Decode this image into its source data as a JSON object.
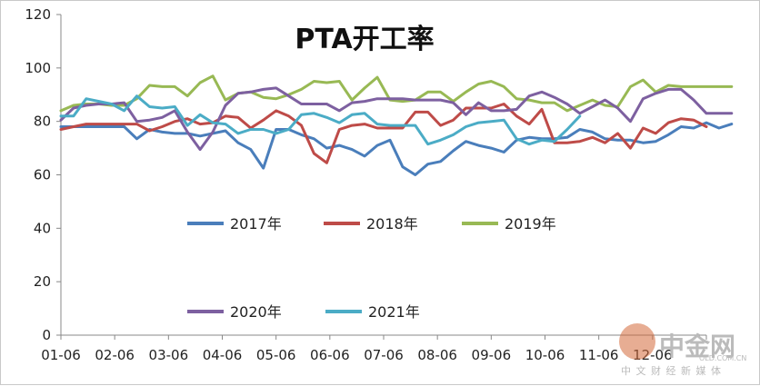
{
  "chart_data": {
    "type": "line",
    "title": "PTA开工率",
    "xlabel": "",
    "ylabel": "",
    "ylim": [
      0,
      120
    ],
    "yticks": [
      0,
      20,
      40,
      60,
      80,
      100,
      120
    ],
    "xticks": [
      "01-06",
      "02-06",
      "03-06",
      "04-06",
      "05-06",
      "06-06",
      "07-06",
      "08-06",
      "09-06",
      "10-06",
      "11-06",
      "12-06"
    ],
    "x_points_per_year": 52,
    "grid": false,
    "legend_placement": "middle",
    "series": [
      {
        "name": "2017年",
        "color": "#4a7ebb",
        "values": [
          78,
          78,
          78,
          78,
          78,
          78,
          73.5,
          77,
          76,
          75.5,
          75.5,
          74.5,
          75.5,
          76.5,
          72,
          69.5,
          62.5,
          77,
          77,
          75,
          73.5,
          70,
          71,
          69.5,
          67,
          71,
          73,
          63,
          60,
          64,
          65,
          69,
          72.5,
          71,
          70,
          68.5,
          73,
          74,
          73.5,
          73.5,
          74,
          77,
          76,
          73.5,
          73,
          73,
          72,
          72.5,
          75,
          78,
          77.5,
          79.5,
          77.5,
          79
        ]
      },
      {
        "name": "2018年",
        "color": "#be4b48",
        "values": [
          77,
          78,
          79,
          79,
          79,
          79,
          79,
          76.5,
          78,
          80,
          81,
          79,
          79.5,
          82,
          81.5,
          77.5,
          80.5,
          84,
          82,
          78.5,
          68,
          64.5,
          77,
          78.5,
          79,
          77.5,
          77.5,
          77.5,
          83.5,
          83.5,
          78.5,
          80.5,
          85,
          85,
          85,
          86.5,
          82,
          79,
          84.5,
          72,
          72,
          72.5,
          74,
          72,
          75.5,
          70,
          77.5,
          75.5,
          79.5,
          81,
          80.5,
          78
        ]
      },
      {
        "name": "2019年",
        "color": "#98b954",
        "values": [
          84,
          86,
          86.5,
          86.5,
          86,
          86,
          88.5,
          93.5,
          93,
          93,
          89.5,
          94.5,
          97,
          88,
          90.5,
          91,
          89,
          88.5,
          90,
          92,
          95,
          94.5,
          95,
          88,
          92.5,
          96.5,
          88,
          87.5,
          88,
          91,
          91,
          87.5,
          91,
          94,
          95,
          93,
          88.5,
          88,
          87,
          87,
          84,
          86,
          88,
          86,
          85.5,
          93,
          95.5,
          91,
          93.5,
          93,
          93,
          93,
          93,
          93
        ]
      },
      {
        "name": "2020年",
        "color": "#7d60a0",
        "values": [
          80.5,
          85,
          86,
          86.5,
          86.5,
          87,
          80,
          80.5,
          81.5,
          84,
          76,
          69.5,
          76,
          86,
          90.5,
          91,
          92,
          92.5,
          89.5,
          86.5,
          86.5,
          86.5,
          84,
          87,
          87.5,
          88.5,
          88.5,
          88.5,
          88,
          88,
          88,
          87,
          82.5,
          87,
          84,
          84,
          84.5,
          89.5,
          91,
          89,
          86.5,
          83,
          85.5,
          88,
          85,
          80,
          88.5,
          90.5,
          92,
          92,
          88,
          83,
          83,
          83
        ]
      },
      {
        "name": "2021年",
        "color": "#4bacc6",
        "values": [
          82,
          82,
          88.5,
          87.5,
          86.5,
          84,
          89.5,
          85.5,
          85,
          85.5,
          78.5,
          82.5,
          79.5,
          79,
          75.5,
          77,
          77,
          75.5,
          77,
          82.5,
          83,
          81.5,
          79.5,
          82.5,
          83,
          79,
          78.5,
          78.5,
          78.5,
          71.5,
          73,
          75,
          78,
          79.5,
          80,
          80.5,
          73.5,
          71.5,
          73,
          72.5,
          77,
          82
        ]
      }
    ]
  },
  "watermark": {
    "brand": "中金网",
    "tagline": "中 文 财 经 新 媒 体",
    "url": "OLD.COM.CN"
  }
}
